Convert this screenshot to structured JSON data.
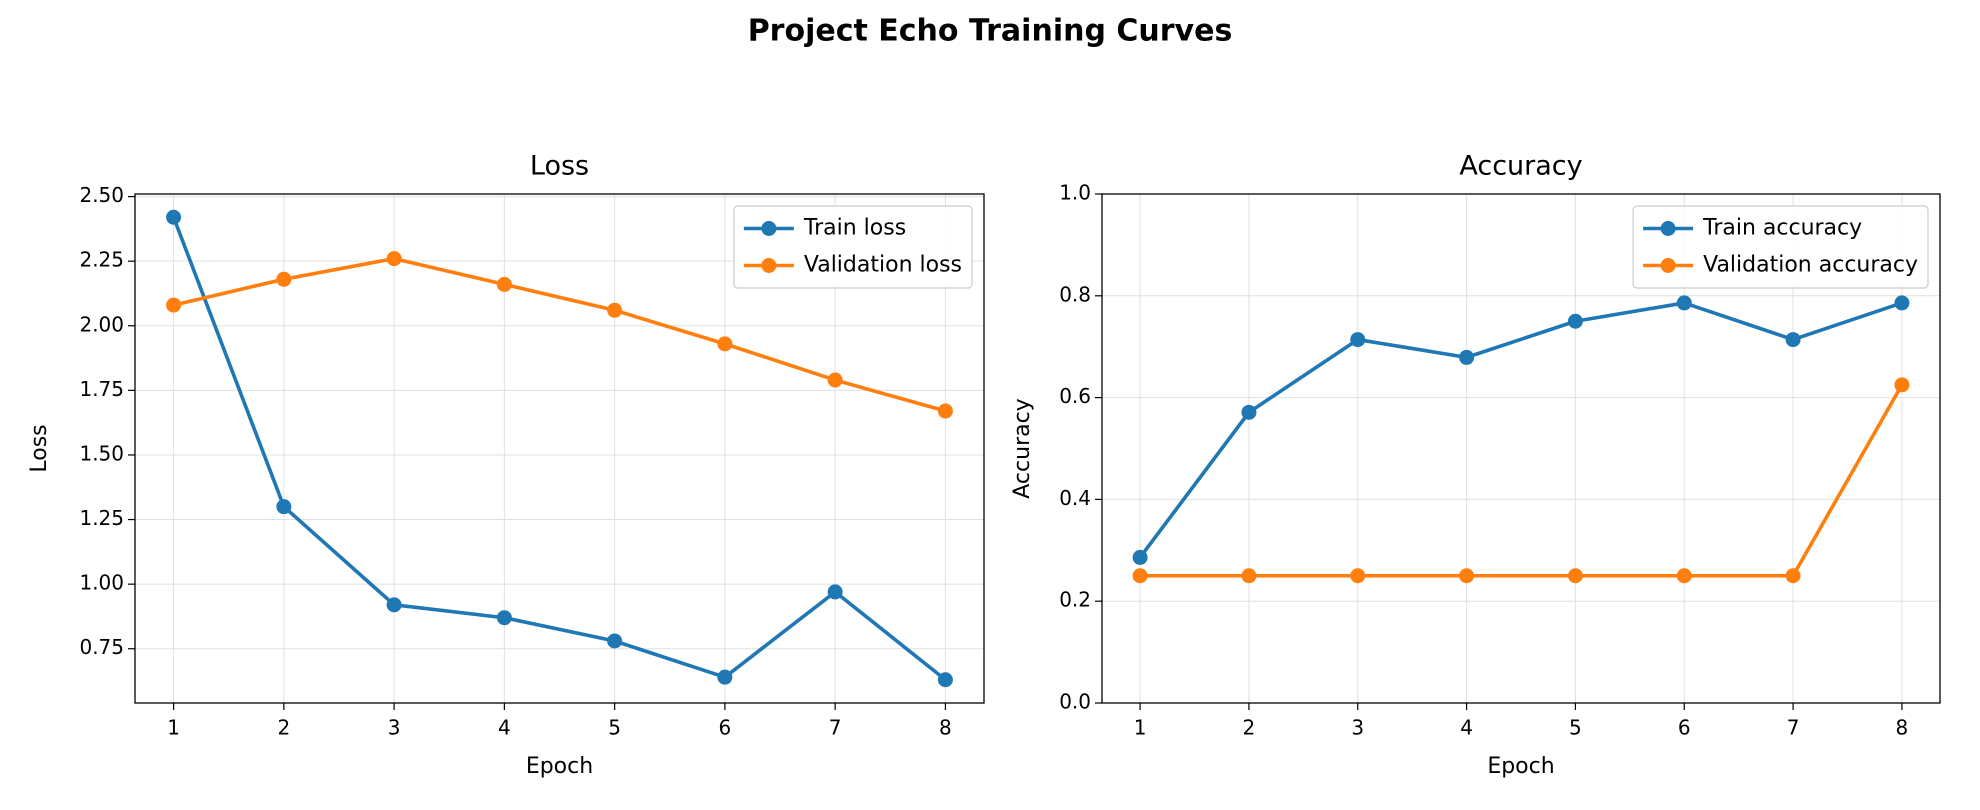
{
  "title": "Project Echo Training Curves",
  "chart_data": [
    {
      "type": "line",
      "title": "Loss",
      "xlabel": "Epoch",
      "ylabel": "Loss",
      "x": [
        1,
        2,
        3,
        4,
        5,
        6,
        7,
        8
      ],
      "series": [
        {
          "name": "Train loss",
          "color": "#1f77b4",
          "values": [
            2.42,
            1.3,
            0.92,
            0.87,
            0.78,
            0.64,
            0.97,
            0.63
          ]
        },
        {
          "name": "Validation loss",
          "color": "#ff7f0e",
          "values": [
            2.08,
            2.18,
            2.26,
            2.16,
            2.06,
            1.93,
            1.79,
            1.67
          ]
        }
      ],
      "xlim": [
        0.65,
        8.35
      ],
      "xticks": [
        1,
        2,
        3,
        4,
        5,
        6,
        7,
        8
      ],
      "ylim": [
        0.54,
        2.51
      ],
      "yticks": [
        0.75,
        {
          "value": 1,
          "label": "1.00"
        },
        1.25,
        {
          "value": 1.5,
          "label": "1.50"
        },
        1.75,
        {
          "value": 2,
          "label": "2.00"
        },
        2.25,
        {
          "value": 2.5,
          "label": "2.50"
        }
      ],
      "grid": true,
      "legend": "upper right"
    },
    {
      "type": "line",
      "title": "Accuracy",
      "xlabel": "Epoch",
      "ylabel": "Accuracy",
      "x": [
        1,
        2,
        3,
        4,
        5,
        6,
        7,
        8
      ],
      "series": [
        {
          "name": "Train accuracy",
          "color": "#1f77b4",
          "values": [
            0.286,
            0.571,
            0.714,
            0.679,
            0.75,
            0.786,
            0.714,
            0.786
          ]
        },
        {
          "name": "Validation accuracy",
          "color": "#ff7f0e",
          "values": [
            0.25,
            0.25,
            0.25,
            0.25,
            0.25,
            0.25,
            0.25,
            0.625
          ]
        }
      ],
      "xlim": [
        0.65,
        8.35
      ],
      "xticks": [
        1,
        2,
        3,
        4,
        5,
        6,
        7,
        8
      ],
      "ylim": [
        0,
        1
      ],
      "yticks": [
        {
          "value": 0,
          "label": "0.0"
        },
        0.2,
        0.4,
        0.6,
        0.8,
        {
          "value": 1,
          "label": "1.0"
        }
      ],
      "grid": true,
      "legend": "upper right"
    }
  ]
}
